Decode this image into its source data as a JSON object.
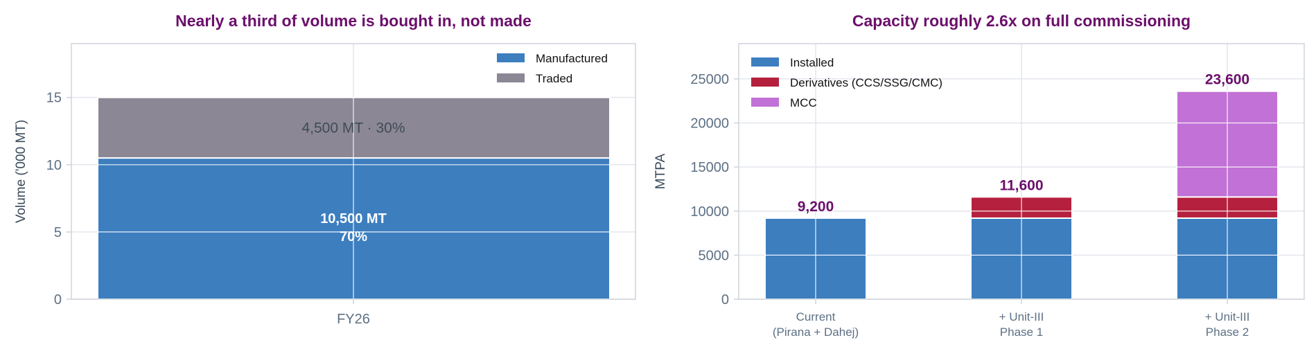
{
  "chart_data": [
    {
      "type": "bar",
      "stacked": true,
      "title": "Nearly a third of volume is bought in, not made",
      "xlabel": "",
      "ylabel": "Volume ('000 MT)",
      "categories": [
        "FY26"
      ],
      "ylim": [
        0,
        19
      ],
      "yticks": [
        "0",
        "5",
        "10",
        "15"
      ],
      "ytick_values": [
        0,
        5,
        10,
        15
      ],
      "grid": true,
      "legend_position": "top-right",
      "series": [
        {
          "name": "Manufactured",
          "values": [
            10.5
          ],
          "color": "#3d7ebf",
          "bar_label": [
            "10,500 MT",
            "70%"
          ]
        },
        {
          "name": "Traded",
          "values": [
            4.5
          ],
          "color": "#8b8794",
          "bar_label": [
            "4,500 MT · 30%"
          ]
        }
      ]
    },
    {
      "type": "bar",
      "stacked": true,
      "title": "Capacity roughly 2.6x on full commissioning",
      "xlabel": "",
      "ylabel": "MTPA",
      "categories": [
        [
          "Current",
          "(Pirana + Dahej)"
        ],
        [
          "+ Unit-III",
          "Phase 1"
        ],
        [
          "+ Unit-III",
          "Phase 2"
        ]
      ],
      "ylim": [
        0,
        29000
      ],
      "yticks": [
        "0",
        "5000",
        "10000",
        "15000",
        "20000",
        "25000"
      ],
      "ytick_values": [
        0,
        5000,
        10000,
        15000,
        20000,
        25000
      ],
      "grid": true,
      "legend_position": "top-left",
      "series": [
        {
          "name": "Installed",
          "values": [
            9200,
            9200,
            9200
          ],
          "color": "#3d7ebf"
        },
        {
          "name": "Derivatives (CCS/SSG/CMC)",
          "values": [
            0,
            2400,
            2400
          ],
          "color": "#b5203e"
        },
        {
          "name": "MCC",
          "values": [
            0,
            0,
            12000
          ],
          "color": "#c271d6"
        }
      ],
      "totals": [
        "9,200",
        "11,600",
        "23,600"
      ],
      "total_values": [
        9200,
        11600,
        23600
      ]
    }
  ]
}
